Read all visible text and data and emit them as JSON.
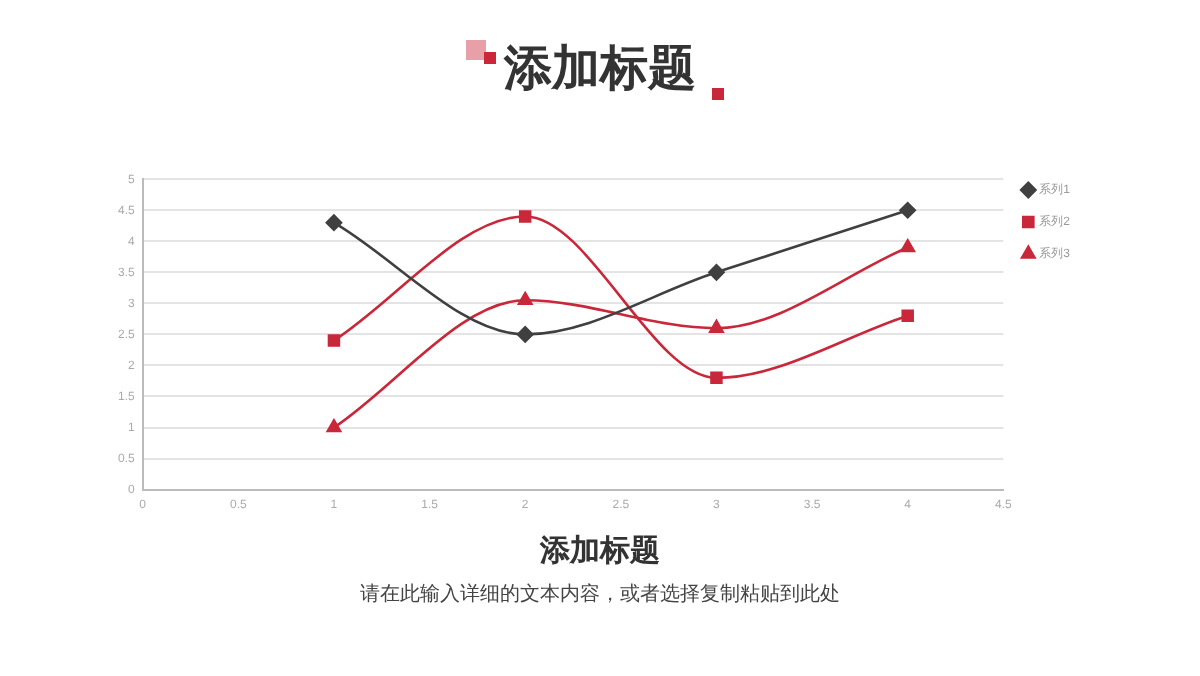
{
  "chart_data": {
    "type": "line",
    "title": "添加标题",
    "x": [
      1,
      2,
      3,
      4
    ],
    "series": [
      {
        "name": "系列1",
        "color": "#404040",
        "marker": "diamond",
        "values": [
          4.3,
          2.5,
          3.5,
          4.5
        ]
      },
      {
        "name": "系列2",
        "color": "#c8283a",
        "marker": "square",
        "values": [
          2.4,
          4.4,
          1.8,
          2.8
        ]
      },
      {
        "name": "系列3",
        "color": "#c8283a",
        "marker": "triangle",
        "values": [
          1,
          3.05,
          2.6,
          3.9
        ]
      }
    ],
    "xlim": [
      0,
      4.5
    ],
    "xticks": [
      0,
      0.5,
      1,
      1.5,
      2,
      2.5,
      3,
      3.5,
      4,
      4.5
    ],
    "ylim": [
      0,
      5
    ],
    "yticks": [
      0,
      0.5,
      1,
      1.5,
      2,
      2.5,
      3,
      3.5,
      4,
      4.5,
      5
    ],
    "grid": "y",
    "legend": "right",
    "annotations": [
      "添加标题",
      "请在此输入详细的文本内容，或者选择复制粘贴到此处"
    ]
  }
}
